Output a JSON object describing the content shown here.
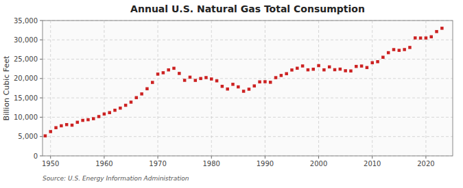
{
  "chart_data": {
    "type": "scatter",
    "title": "Annual U.S. Natural Gas Total Consumption",
    "ylabel": "Billion Cubic Feet",
    "source": "Source: U.S. Energy Information Administration",
    "color": "#cc2222",
    "marker": "square",
    "grid": true,
    "xlim": [
      1948.5,
      2025
    ],
    "xticks": [
      1950,
      1960,
      1970,
      1980,
      1990,
      2000,
      2010,
      2020
    ],
    "ylim": [
      0,
      35000
    ],
    "yticks": [
      0,
      {
        "value": 5000,
        "label": "5,000"
      },
      {
        "value": 10000,
        "label": "10,000"
      },
      {
        "value": 15000,
        "label": "15,000"
      },
      {
        "value": 20000,
        "label": "20,000"
      },
      {
        "value": 25000,
        "label": "25,000"
      },
      {
        "value": 30000,
        "label": "30,000"
      },
      {
        "value": 35000,
        "label": "35,000"
      }
    ],
    "x": [
      1949,
      1950,
      1951,
      1952,
      1953,
      1954,
      1955,
      1956,
      1957,
      1958,
      1959,
      1960,
      1961,
      1962,
      1963,
      1964,
      1965,
      1966,
      1967,
      1968,
      1969,
      1970,
      1971,
      1972,
      1973,
      1974,
      1975,
      1976,
      1977,
      1978,
      1979,
      1980,
      1981,
      1982,
      1983,
      1984,
      1985,
      1986,
      1987,
      1988,
      1989,
      1990,
      1991,
      1992,
      1993,
      1994,
      1995,
      1996,
      1997,
      1998,
      1999,
      2000,
      2001,
      2002,
      2003,
      2004,
      2005,
      2006,
      2007,
      2008,
      2009,
      2010,
      2011,
      2012,
      2013,
      2014,
      2015,
      2016,
      2017,
      2018,
      2019,
      2020,
      2021,
      2022,
      2023
    ],
    "values": [
      5174,
      6282,
      7285,
      7777,
      8082,
      7942,
      8693,
      9186,
      9354,
      9616,
      10164,
      10822,
      11180,
      11797,
      12348,
      13082,
      13894,
      15055,
      16019,
      17356,
      18991,
      21141,
      21490,
      22232,
      22648,
      21318,
      19538,
      20346,
      19521,
      20000,
      20241,
      19877,
      19406,
      17980,
      17286,
      18505,
      17836,
      16709,
      17239,
      18086,
      19135,
      19174,
      19035,
      20228,
      20793,
      21247,
      22207,
      22660,
      23248,
      22246,
      22405,
      23333,
      22242,
      23007,
      22278,
      22430,
      22012,
      21960,
      23128,
      23224,
      22837,
      24088,
      24352,
      25498,
      26681,
      27478,
      27285,
      27490,
      28034,
      30496,
      30467,
      30478,
      30792,
      32138,
      33000
    ]
  }
}
